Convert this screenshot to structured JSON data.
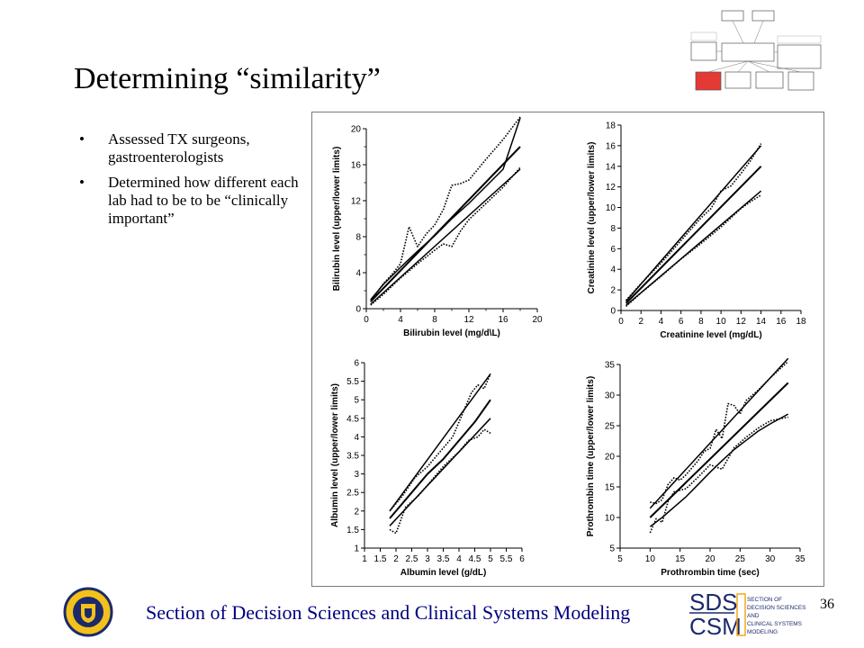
{
  "slide": {
    "title": "Determining “similarity”",
    "bullets": [
      "Assessed TX surgeons, gastroenterologists",
      "Determined how different each lab had to be to be “clinically important”"
    ],
    "footer": "Section of Decision Sciences and Clinical Systems Modeling",
    "page_number": "36",
    "logo_text": {
      "sds_top": "SDS",
      "sds_bottom": "CSM",
      "sds_words": [
        "SECTION OF",
        "DECISION SCIENCES",
        "AND",
        "CLINICAL SYSTEMS",
        "MODELING"
      ]
    },
    "colors": {
      "footer": "#000080",
      "flow_highlight": "#e53935"
    },
    "icons": [
      "university-seal-icon",
      "sds-csm-logo-icon",
      "flowchart-thumbnail-icon"
    ]
  },
  "chart_data": [
    {
      "type": "line",
      "xlabel": "Bilirubin level (mg/d\\L)",
      "ylabel": "Bilirubin level (upper/lower limits)",
      "xlim": [
        0,
        20
      ],
      "ylim": [
        0,
        20
      ],
      "xticks": [
        0,
        4,
        8,
        12,
        16,
        20
      ],
      "yticks": [
        0,
        4,
        8,
        12,
        16,
        20
      ],
      "x_minor_ticks": [
        2,
        6,
        10,
        14,
        18
      ],
      "y_minor_ticks": [
        2,
        6,
        10,
        14,
        18
      ],
      "grid": false,
      "series": [
        {
          "style": "solid",
          "x": [
            0.5,
            2,
            4,
            6,
            8,
            10,
            12,
            14,
            16,
            18
          ],
          "y": [
            1,
            2.7,
            4.6,
            6.4,
            8.1,
            10,
            11.7,
            13.6,
            15.5,
            21.2
          ]
        },
        {
          "style": "solid",
          "x": [
            0.5,
            18
          ],
          "y": [
            0.8,
            18
          ]
        },
        {
          "style": "solid",
          "x": [
            0.5,
            18
          ],
          "y": [
            0.5,
            15.5
          ]
        },
        {
          "style": "dotted",
          "x": [
            0.5,
            2,
            3,
            4,
            5,
            6,
            7,
            8,
            9,
            10,
            11,
            12,
            14,
            16,
            18
          ],
          "y": [
            0.8,
            2.8,
            3.8,
            5,
            9.1,
            6.9,
            8.3,
            9.3,
            11,
            13.7,
            13.9,
            14.3,
            16.6,
            18.8,
            21.3
          ]
        },
        {
          "style": "dotted",
          "x": [
            0.5,
            2,
            4,
            6,
            8,
            9,
            10,
            11,
            12,
            14,
            16,
            18
          ],
          "y": [
            0.4,
            1.6,
            3.4,
            5,
            6.5,
            7.2,
            6.9,
            8.6,
            9.9,
            11.7,
            13.5,
            15.7
          ]
        }
      ]
    },
    {
      "type": "line",
      "xlabel": "Creatinine level (mg/dL)",
      "ylabel": "Creatinine level (upper/lower limits)",
      "xlim": [
        0,
        18
      ],
      "ylim": [
        0,
        18
      ],
      "xticks": [
        0,
        2,
        4,
        6,
        8,
        10,
        12,
        14,
        16,
        18
      ],
      "yticks": [
        0,
        2,
        4,
        6,
        8,
        10,
        12,
        14,
        16,
        18
      ],
      "grid": false,
      "series": [
        {
          "style": "solid",
          "x": [
            0.5,
            14
          ],
          "y": [
            0.9,
            16
          ]
        },
        {
          "style": "solid",
          "x": [
            0.5,
            14
          ],
          "y": [
            0.7,
            14
          ]
        },
        {
          "style": "solid",
          "x": [
            0.5,
            14
          ],
          "y": [
            0.5,
            11.6
          ]
        },
        {
          "style": "dotted",
          "x": [
            0.5,
            2,
            4,
            6,
            8,
            9,
            10,
            11,
            12,
            13,
            14
          ],
          "y": [
            1,
            2.6,
            4.6,
            6.8,
            9,
            9.9,
            11.6,
            12.1,
            13.3,
            14.6,
            16.2
          ]
        },
        {
          "style": "dotted",
          "x": [
            0.5,
            2,
            4,
            6,
            8,
            10,
            11,
            12,
            13,
            14
          ],
          "y": [
            0.4,
            1.7,
            3.3,
            5,
            6.5,
            8.1,
            9,
            9.9,
            10.6,
            11.2
          ]
        }
      ]
    },
    {
      "type": "line",
      "xlabel": "Albumin level (g/dL)",
      "ylabel": "Albumin level (upper/lower limits)",
      "xlim": [
        1,
        6
      ],
      "ylim": [
        1,
        6
      ],
      "xticks": [
        1,
        1.5,
        2,
        2.5,
        3,
        3.5,
        4,
        4.5,
        5,
        5.5,
        6
      ],
      "yticks": [
        1,
        1.5,
        2,
        2.5,
        3,
        3.5,
        4,
        4.5,
        5,
        5.5,
        6
      ],
      "grid": false,
      "series": [
        {
          "style": "solid",
          "x": [
            1.8,
            5
          ],
          "y": [
            2,
            5.7
          ]
        },
        {
          "style": "solid",
          "x": [
            1.8,
            2.5,
            3,
            3.5,
            4,
            4.5,
            5
          ],
          "y": [
            1.8,
            2.5,
            3,
            3.4,
            3.9,
            4.4,
            5
          ]
        },
        {
          "style": "solid",
          "x": [
            1.8,
            5
          ],
          "y": [
            1.6,
            4.5
          ]
        },
        {
          "style": "dotted",
          "x": [
            1.8,
            2.2,
            2.6,
            3,
            3.4,
            3.8,
            4.2,
            4.4,
            4.6,
            4.8,
            5
          ],
          "y": [
            2,
            2.4,
            2.9,
            3.2,
            3.6,
            4,
            4.8,
            5.2,
            5.4,
            5.3,
            5.7
          ]
        },
        {
          "style": "dotted",
          "x": [
            1.8,
            2,
            2.3,
            2.7,
            3,
            3.5,
            4,
            4.3,
            4.6,
            4.8,
            5
          ],
          "y": [
            1.5,
            1.4,
            2.1,
            2.4,
            2.7,
            3.2,
            3.6,
            3.9,
            4,
            4.2,
            4.1
          ]
        }
      ]
    },
    {
      "type": "line",
      "xlabel": "Prothrombin time (sec)",
      "ylabel": "Prothrombin time (upper/lower limits)",
      "xlim": [
        5,
        35
      ],
      "ylim": [
        5,
        35
      ],
      "xticks": [
        5,
        10,
        15,
        20,
        25,
        30,
        35
      ],
      "yticks": [
        5,
        10,
        15,
        20,
        25,
        30,
        35
      ],
      "grid": false,
      "series": [
        {
          "style": "solid",
          "x": [
            10,
            33
          ],
          "y": [
            11.5,
            36
          ]
        },
        {
          "style": "solid",
          "x": [
            10,
            33
          ],
          "y": [
            10,
            32
          ]
        },
        {
          "style": "solid",
          "x": [
            10,
            12,
            14,
            16,
            18,
            20,
            22,
            24,
            26,
            28,
            30,
            33
          ],
          "y": [
            8.5,
            10,
            11.7,
            13.4,
            15.4,
            17.4,
            19.3,
            21.1,
            22.6,
            24.1,
            25.3,
            26.9
          ]
        },
        {
          "style": "dotted",
          "x": [
            10,
            11,
            12,
            13,
            14,
            15,
            16,
            18,
            19,
            20,
            21,
            22,
            23,
            24,
            25,
            26,
            28,
            30,
            33
          ],
          "y": [
            12.5,
            12.3,
            12.9,
            15.4,
            16.5,
            16.1,
            17,
            19.3,
            20.8,
            21.3,
            24.4,
            22.9,
            28.6,
            28.3,
            26.9,
            29.1,
            30.8,
            32.8,
            35.5
          ]
        },
        {
          "style": "dotted",
          "x": [
            10,
            11,
            12,
            13,
            14,
            16,
            18,
            20,
            22,
            24,
            26,
            28,
            30,
            33
          ],
          "y": [
            7.5,
            9.8,
            9.2,
            12.6,
            14.2,
            14.7,
            16.6,
            18.6,
            17.9,
            21.4,
            23.1,
            24.6,
            25.8,
            26.4
          ]
        }
      ]
    }
  ]
}
